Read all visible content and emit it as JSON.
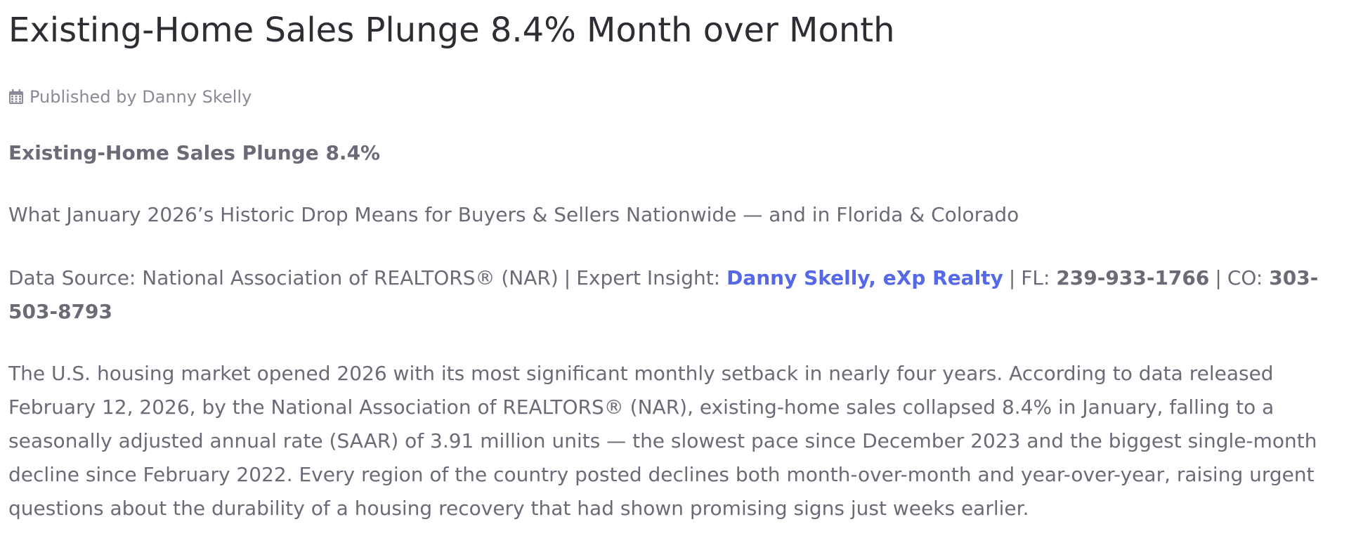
{
  "article": {
    "title": "Existing-Home Sales Plunge 8.4% Month over Month",
    "meta": {
      "icon": "calendar-icon",
      "published_by": "Published by Danny Skelly"
    },
    "subhead": "Existing-Home Sales Plunge 8.4%",
    "dek": "What January 2026’s Historic Drop Means for Buyers & Sellers Nationwide — and in Florida & Colorado",
    "source_line": {
      "data_source": "Data Source: National Association of REALTORS® (NAR)",
      "separator": "|",
      "expert_label": "Expert Insight: ",
      "expert_name": "Danny Skelly, eXp Realty",
      "fl_label": "FL: ",
      "fl_phone": "239-933-1766",
      "co_label": "CO: ",
      "co_phone": "303-503-8793"
    },
    "body": "The U.S. housing market opened 2026 with its most significant monthly setback in nearly four years. According to data released February 12, 2026, by the National Association of REALTORS® (NAR), existing-home sales collapsed 8.4% in January, falling to a seasonally adjusted annual rate (SAAR) of 3.91 million units — the slowest pace since December 2023 and the biggest single-month decline since February 2022. Every region of the country posted declines both month-over-month and year-over-year, raising urgent questions about the durability of a housing recovery that had shown promising signs just weeks earlier.",
    "colors": {
      "title": "#2d2d33",
      "text": "#6b6b78",
      "meta": "#8a8a96",
      "link": "#5468e8"
    }
  }
}
